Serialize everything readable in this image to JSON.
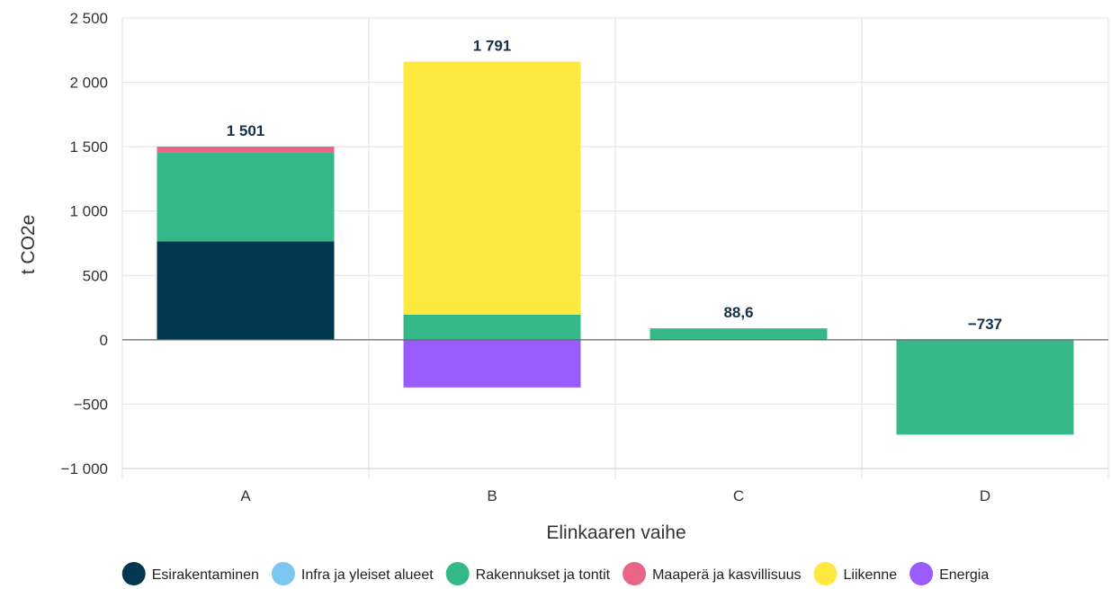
{
  "chart_data": {
    "type": "bar",
    "stacked": true,
    "categories": [
      "A",
      "B",
      "C",
      "D"
    ],
    "xlabel": "Elinkaaren vaihe",
    "ylabel": "t CO2e",
    "ylim": [
      -1000,
      2500
    ],
    "yticks": [
      -1000,
      -500,
      0,
      500,
      1000,
      1500,
      2000,
      2500
    ],
    "ytick_labels": [
      "−1 000",
      "−500",
      "0",
      "500",
      "1 000",
      "1 500",
      "2 000",
      "2 500"
    ],
    "grid": true,
    "legend_position": "bottom",
    "series": [
      {
        "name": "Esirakentaminen",
        "color": "#02374f",
        "values": [
          765,
          0,
          0,
          0
        ]
      },
      {
        "name": "Infra ja yleiset alueet",
        "color": "#7cc6f2",
        "values": [
          0,
          0,
          0,
          0
        ]
      },
      {
        "name": "Rakennukset ja tontit",
        "color": "#35b888",
        "values": [
          690,
          195,
          88.6,
          -737
        ]
      },
      {
        "name": "Maaperä ja kasvillisuus",
        "color": "#ea6485",
        "values": [
          46,
          0,
          0,
          0
        ]
      },
      {
        "name": "Liikenne",
        "color": "#ffe941",
        "values": [
          0,
          1966,
          0,
          0
        ]
      },
      {
        "name": "Energia",
        "color": "#9a5cff",
        "values": [
          0,
          -370,
          0,
          0
        ]
      }
    ],
    "totals": [
      1501,
      1791,
      88.6,
      -737
    ],
    "total_labels": [
      "1 501",
      "1 791",
      "88,6",
      "−737"
    ]
  }
}
